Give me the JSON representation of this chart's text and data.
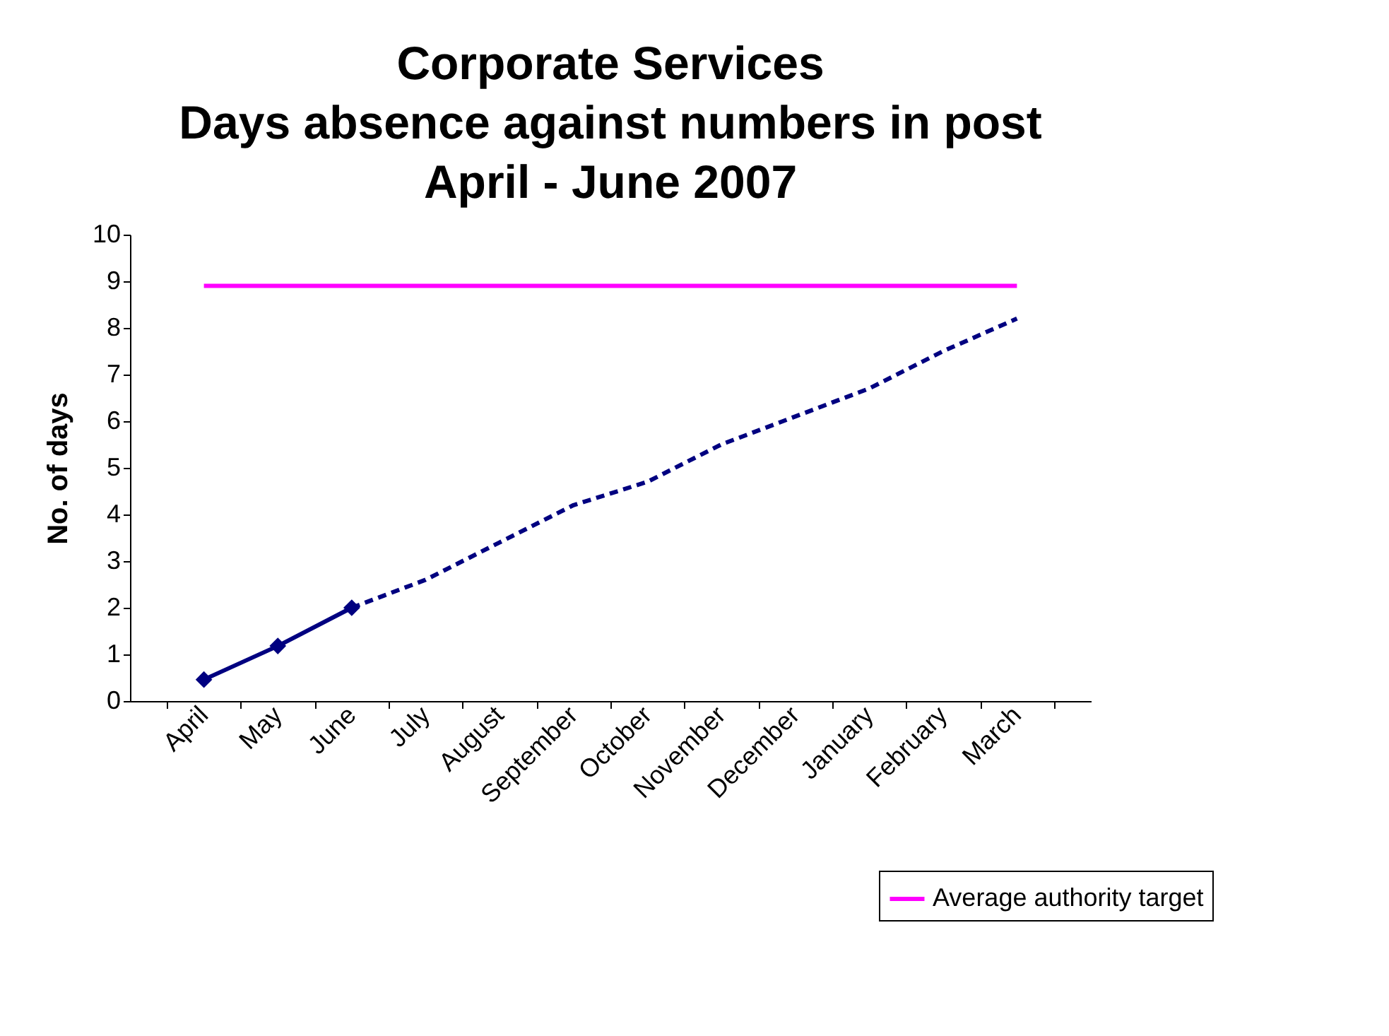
{
  "chart_data": {
    "type": "line",
    "title": [
      "Corporate Services",
      "Days absence against numbers in post",
      "April - June 2007"
    ],
    "ylabel": "No. of days",
    "categories": [
      "April",
      "May",
      "June",
      "July",
      "August",
      "September",
      "October",
      "November",
      "December",
      "January",
      "February",
      "March"
    ],
    "series": [
      {
        "color": "#000080",
        "marker": "diamond",
        "line_style": "solid",
        "values": [
          0.46,
          1.18,
          2.0,
          null,
          null,
          null,
          null,
          null,
          null,
          null,
          null,
          null
        ]
      },
      {
        "color": "#000080",
        "marker": "none",
        "line_style": "dotted",
        "values": [
          null,
          null,
          2.0,
          2.6,
          3.4,
          4.2,
          4.7,
          5.5,
          6.1,
          6.7,
          7.5,
          8.2
        ]
      },
      {
        "name": "Average authority target",
        "color": "#ff00ff",
        "marker": "none",
        "line_style": "solid",
        "values": [
          8.9,
          8.9,
          8.9,
          8.9,
          8.9,
          8.9,
          8.9,
          8.9,
          8.9,
          8.9,
          8.9,
          8.9
        ]
      }
    ],
    "ylim": [
      0,
      10
    ],
    "yticks": [
      0,
      1,
      2,
      3,
      4,
      5,
      6,
      7,
      8,
      9,
      10
    ],
    "grid": false,
    "legend": "bottom right"
  }
}
